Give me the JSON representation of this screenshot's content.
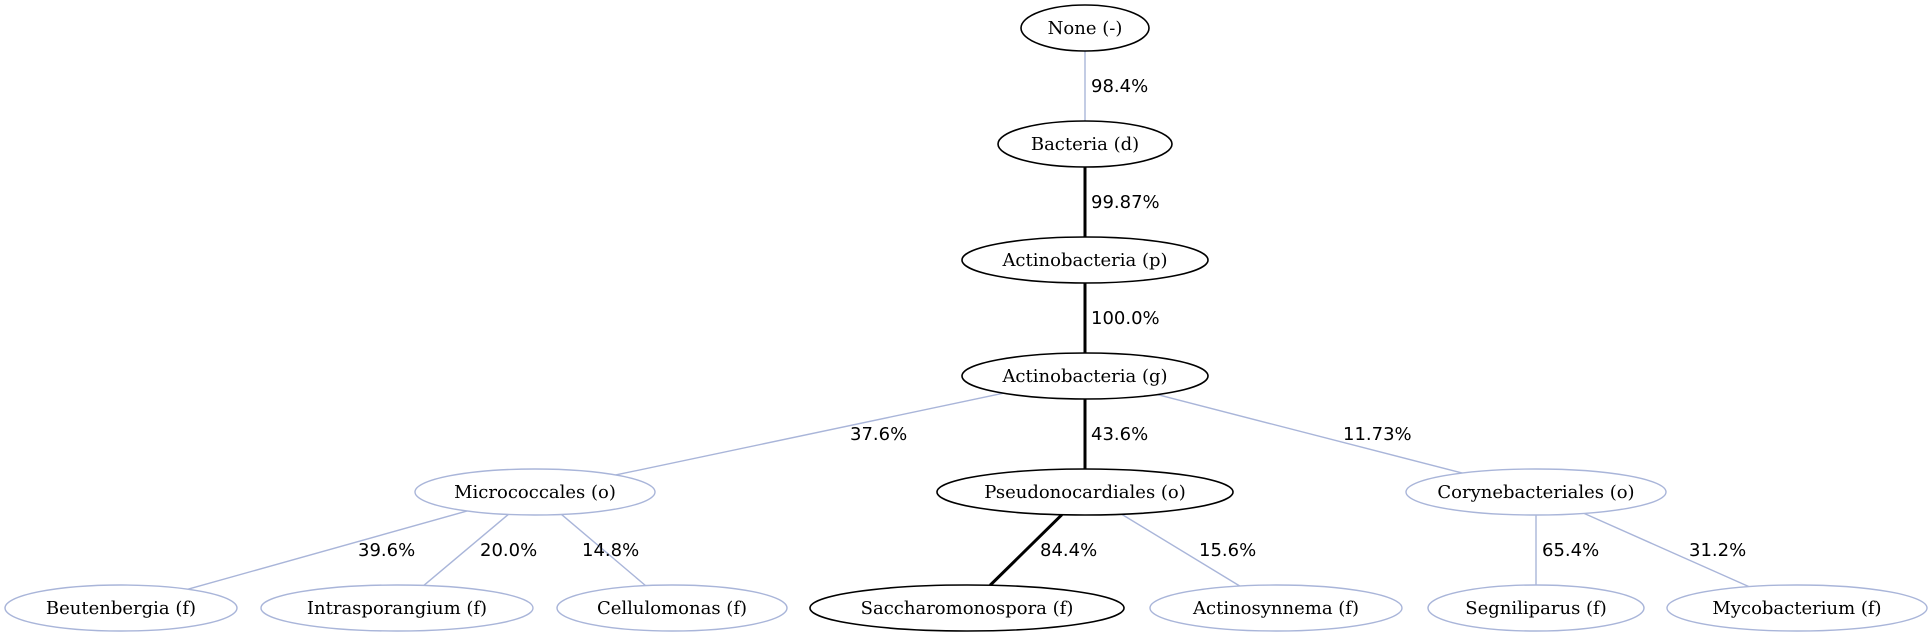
{
  "colors": {
    "strong": "#000000",
    "weak": "#a9b5d9",
    "background": "#ffffff"
  },
  "nodes": [
    {
      "id": "none",
      "label": "None (-)",
      "strong": true
    },
    {
      "id": "bacteria",
      "label": "Bacteria (d)",
      "strong": true
    },
    {
      "id": "actino_p",
      "label": "Actinobacteria (p)",
      "strong": true
    },
    {
      "id": "actino_g",
      "label": "Actinobacteria (g)",
      "strong": true
    },
    {
      "id": "micrococcales",
      "label": "Micrococcales (o)",
      "strong": false
    },
    {
      "id": "pseudonocardiales",
      "label": "Pseudonocardiales (o)",
      "strong": true
    },
    {
      "id": "corynebacteriales",
      "label": "Corynebacteriales (o)",
      "strong": false
    },
    {
      "id": "beutenbergia",
      "label": "Beutenbergia (f)",
      "strong": false
    },
    {
      "id": "intrasporangium",
      "label": "Intrasporangium (f)",
      "strong": false
    },
    {
      "id": "cellulomonas",
      "label": "Cellulomonas (f)",
      "strong": false
    },
    {
      "id": "saccharomonospora",
      "label": "Saccharomonospora (f)",
      "strong": true
    },
    {
      "id": "actinosynnema",
      "label": "Actinosynnema (f)",
      "strong": false
    },
    {
      "id": "segniliparus",
      "label": "Segniliparus (f)",
      "strong": false
    },
    {
      "id": "mycobacterium",
      "label": "Mycobacterium (f)",
      "strong": false
    }
  ],
  "edges": [
    {
      "from": "none",
      "to": "bacteria",
      "label": "98.4%",
      "strong": false
    },
    {
      "from": "bacteria",
      "to": "actino_p",
      "label": "99.87%",
      "strong": true
    },
    {
      "from": "actino_p",
      "to": "actino_g",
      "label": "100.0%",
      "strong": true
    },
    {
      "from": "actino_g",
      "to": "micrococcales",
      "label": "37.6%",
      "strong": false
    },
    {
      "from": "actino_g",
      "to": "pseudonocardiales",
      "label": "43.6%",
      "strong": true
    },
    {
      "from": "actino_g",
      "to": "corynebacteriales",
      "label": "11.73%",
      "strong": false
    },
    {
      "from": "micrococcales",
      "to": "beutenbergia",
      "label": "39.6%",
      "strong": false
    },
    {
      "from": "micrococcales",
      "to": "intrasporangium",
      "label": "20.0%",
      "strong": false
    },
    {
      "from": "micrococcales",
      "to": "cellulomonas",
      "label": "14.8%",
      "strong": false
    },
    {
      "from": "pseudonocardiales",
      "to": "saccharomonospora",
      "label": "84.4%",
      "strong": true
    },
    {
      "from": "pseudonocardiales",
      "to": "actinosynnema",
      "label": "15.6%",
      "strong": false
    },
    {
      "from": "corynebacteriales",
      "to": "segniliparus",
      "label": "65.4%",
      "strong": false
    },
    {
      "from": "corynebacteriales",
      "to": "mycobacterium",
      "label": "31.2%",
      "strong": false
    }
  ]
}
